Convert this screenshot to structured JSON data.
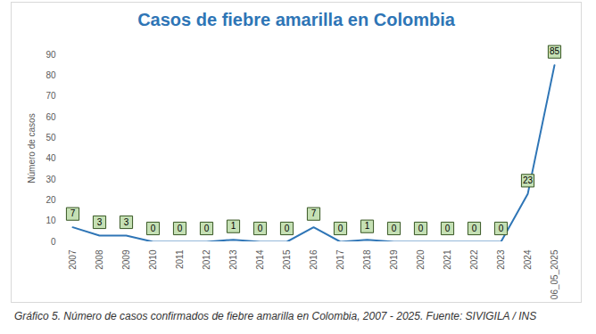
{
  "chart_data": {
    "type": "line",
    "title": "Casos de fiebre amarilla en Colombia",
    "y_label": "Número de casos",
    "caption": "Gráfico 5. Número de casos confirmados de fiebre amarilla en Colombia, 2007 - 2025.  Fuente: SIVIGILA / INS",
    "categories": [
      "2007",
      "2008",
      "2009",
      "2010",
      "2011",
      "2012",
      "2013",
      "2014",
      "2015",
      "2016",
      "2017",
      "2018",
      "2019",
      "2020",
      "2021",
      "2022",
      "2023",
      "2024",
      "06_05_2025"
    ],
    "values": [
      7,
      3,
      3,
      0,
      0,
      0,
      1,
      0,
      0,
      7,
      0,
      1,
      0,
      0,
      0,
      0,
      0,
      23,
      85
    ],
    "color": "#2e75b6",
    "ylim": [
      0,
      90
    ],
    "yticks": [
      0,
      10,
      20,
      30,
      40,
      50,
      60,
      70,
      80,
      90
    ],
    "grid": false,
    "data_labels": true
  }
}
